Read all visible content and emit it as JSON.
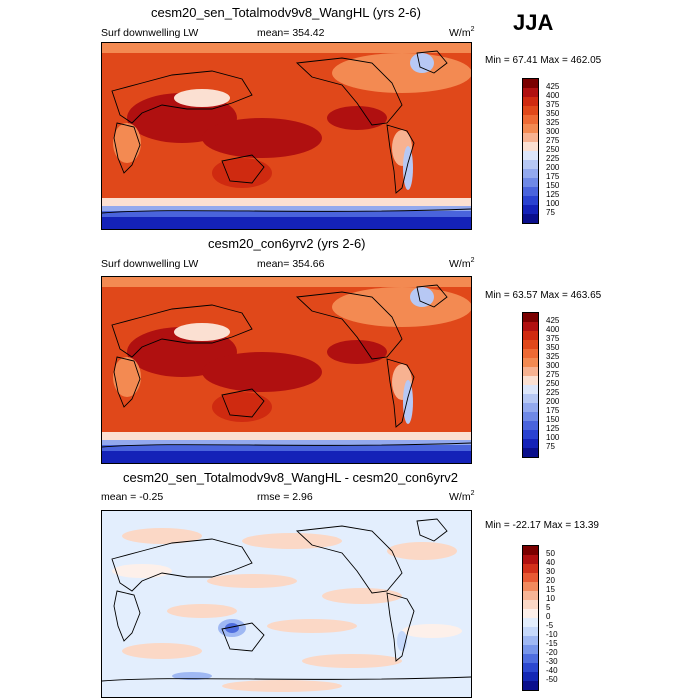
{
  "season": "JJA",
  "panels": [
    {
      "title": "cesm20_sen_Totalmodv9v8_WangHL (yrs 2-6)",
      "left_label": "Surf downwelling LW",
      "center_label": "mean= 354.42",
      "units": "W/m",
      "units_sup": "2",
      "minmax": "Min =  67.41 Max = 462.05",
      "colorbar_labels": [
        "425",
        "400",
        "375",
        "350",
        "325",
        "300",
        "275",
        "250",
        "225",
        "200",
        "175",
        "150",
        "125",
        "100",
        "75"
      ]
    },
    {
      "title": "cesm20_con6yrv2 (yrs 2-6)",
      "left_label": "Surf downwelling LW",
      "center_label": "mean= 354.66",
      "units": "W/m",
      "units_sup": "2",
      "minmax": "Min =  63.57 Max = 463.65",
      "colorbar_labels": [
        "425",
        "400",
        "375",
        "350",
        "325",
        "300",
        "275",
        "250",
        "225",
        "200",
        "175",
        "150",
        "125",
        "100",
        "75"
      ]
    },
    {
      "title": "cesm20_sen_Totalmodv9v8_WangHL - cesm20_con6yrv2",
      "left_label": "mean =  -0.25",
      "center_label": "rmse =  2.96",
      "units": "W/m",
      "units_sup": "2",
      "minmax": "Min = -22.17 Max =  13.39",
      "colorbar_labels": [
        "50",
        "40",
        "30",
        "20",
        "15",
        "10",
        "5",
        "0",
        "-5",
        "-10",
        "-15",
        "-20",
        "-30",
        "-40",
        "-50"
      ]
    }
  ],
  "colors": {
    "abs_scale": [
      "#7a0000",
      "#b01010",
      "#cf2a10",
      "#e0481a",
      "#ee6a34",
      "#f38a52",
      "#f7b291",
      "#fbe0d2",
      "#dde6fa",
      "#b7c8f4",
      "#93a9ee",
      "#6f89e6",
      "#4a64dc",
      "#2a42d0",
      "#1422b8",
      "#0a0f8c"
    ],
    "diff_scale": [
      "#7a0000",
      "#b01010",
      "#d2301a",
      "#e85a34",
      "#f18a5e",
      "#f7b596",
      "#fbd8c6",
      "#fdf0ea",
      "#e3eefd",
      "#c6d9fb",
      "#9fb8f3",
      "#7896ea",
      "#4f6edf",
      "#2c48cf",
      "#1428b4",
      "#0b108c"
    ],
    "land_outline": "#000000"
  }
}
